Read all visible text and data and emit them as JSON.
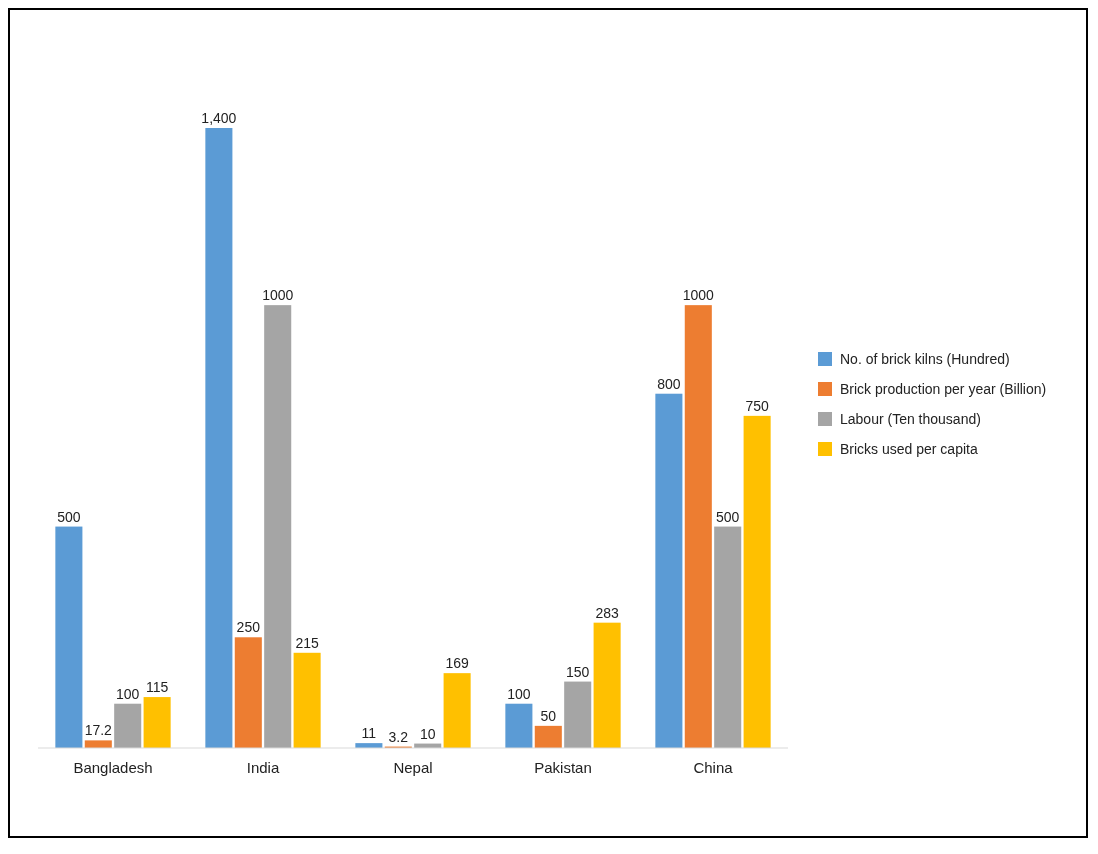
{
  "chart_data": {
    "type": "bar",
    "categories": [
      "Bangladesh",
      "India",
      "Nepal",
      "Pakistan",
      "China"
    ],
    "series": [
      {
        "name": "No. of brick kilns (Hundred)",
        "color": "#5b9bd5",
        "values": [
          500,
          1400,
          11,
          100,
          800
        ],
        "value_labels": [
          "500",
          "1,400",
          "11",
          "100",
          "800"
        ]
      },
      {
        "name": "Brick production per year (Billion)",
        "color": "#ed7d31",
        "values": [
          17.2,
          250,
          3.2,
          50,
          1000
        ],
        "value_labels": [
          "17.2",
          "250",
          "3.2",
          "50",
          "1000"
        ]
      },
      {
        "name": "Labour (Ten thousand)",
        "color": "#a5a5a5",
        "values": [
          100,
          1000,
          10,
          150,
          500
        ],
        "value_labels": [
          "100",
          "1000",
          "10",
          "150",
          "500"
        ]
      },
      {
        "name": "Bricks used per capita",
        "color": "#ffc000",
        "values": [
          115,
          215,
          169,
          283,
          750
        ],
        "value_labels": [
          "115",
          "215",
          "169",
          "283",
          "750"
        ]
      }
    ],
    "legend": "right"
  }
}
